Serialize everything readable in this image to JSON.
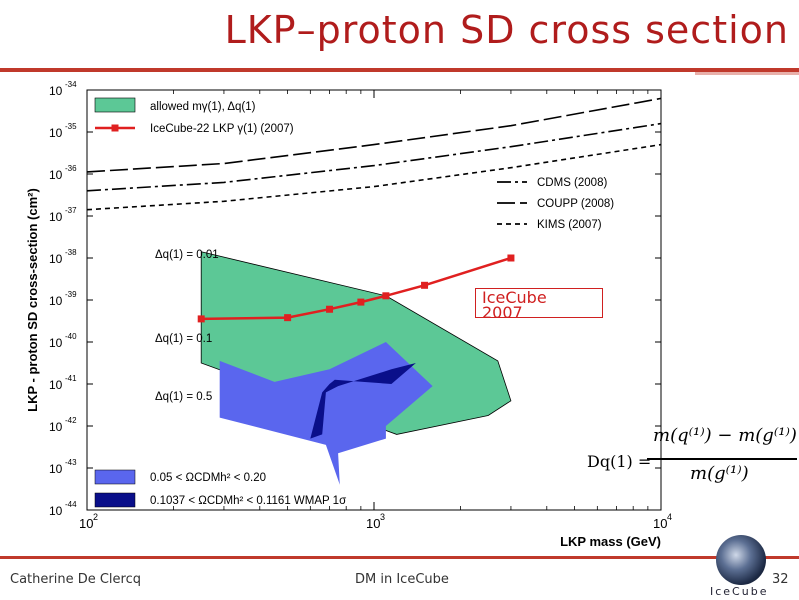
{
  "slide": {
    "title": "LKP–proton SD cross section",
    "footer_author": "Catherine De Clercq",
    "footer_center": "DM in IceCube",
    "page_number": "32",
    "logo_text": "IceCube"
  },
  "annotation": {
    "label_line1": "IceCube",
    "label_line2": "2007"
  },
  "formula": {
    "lhs": "Dq(1) =",
    "numerator": "m(q⁽¹⁾) − m(g⁽¹⁾)",
    "denominator": "m(g⁽¹⁾)"
  },
  "colors": {
    "title": "#b01c1c",
    "allowed": "#5cc896",
    "sigma005": "#5a66ee",
    "wmap": "#0a0f8a",
    "icecube": "#e02020",
    "rule": "#c0392b"
  },
  "chart_data": {
    "type": "line",
    "xlabel": "LKP mass (GeV)",
    "ylabel": "LKP - proton SD cross-section (cm²)",
    "x_scale": "log",
    "y_scale": "log",
    "xlim": [
      100,
      10000
    ],
    "ylim": [
      1e-44,
      1e-34
    ],
    "x_ticks": [
      {
        "value": 100,
        "base": "10",
        "exp": "2"
      },
      {
        "value": 1000,
        "base": "10",
        "exp": "3"
      },
      {
        "value": 10000,
        "base": "10",
        "exp": "4"
      }
    ],
    "y_ticks": [
      {
        "value": -34,
        "base": "10",
        "exp": "-34"
      },
      {
        "value": -35,
        "base": "10",
        "exp": "-35"
      },
      {
        "value": -36,
        "base": "10",
        "exp": "-36"
      },
      {
        "value": -37,
        "base": "10",
        "exp": "-37"
      },
      {
        "value": -38,
        "base": "10",
        "exp": "-38"
      },
      {
        "value": -39,
        "base": "10",
        "exp": "-39"
      },
      {
        "value": -40,
        "base": "10",
        "exp": "-40"
      },
      {
        "value": -41,
        "base": "10",
        "exp": "-41"
      },
      {
        "value": -42,
        "base": "10",
        "exp": "-42"
      },
      {
        "value": -43,
        "base": "10",
        "exp": "-43"
      },
      {
        "value": -44,
        "base": "10",
        "exp": "-44"
      }
    ],
    "legend_top": [
      {
        "name": "allowed mγ(1), Δq(1)",
        "type": "band",
        "color": "#5cc896"
      },
      {
        "name": "IceCube-22 LKP γ(1) (2007)",
        "type": "marker-line",
        "color": "#e02020"
      }
    ],
    "legend_right": [
      {
        "name": "CDMS (2008)",
        "style": "dashdot"
      },
      {
        "name": "COUPP (2008)",
        "style": "longdash"
      },
      {
        "name": "KIMS (2007)",
        "style": "dash"
      }
    ],
    "legend_bottom": [
      {
        "name": "0.05 < ΩCDMh² < 0.20",
        "color": "#5a66ee"
      },
      {
        "name": "0.1037 < ΩCDMh² < 0.1161 WMAP 1σ",
        "color": "#0a0f8a"
      }
    ],
    "delta_labels": [
      "Δq(1) = 0.01",
      "Δq(1) = 0.1",
      "Δq(1) = 0.5"
    ],
    "series": [
      {
        "name": "IceCube-22 LKP γ(1) (2007)",
        "style": "marker-line",
        "x": [
          250,
          500,
          700,
          900,
          1100,
          1500,
          3000
        ],
        "logy": [
          -39.45,
          -39.42,
          -39.22,
          -39.05,
          -38.9,
          -38.65,
          -38.0
        ]
      },
      {
        "name": "COUPP (2008)",
        "style": "longdash",
        "x": [
          100,
          300,
          1000,
          3000,
          10000
        ],
        "logy": [
          -35.95,
          -35.75,
          -35.3,
          -34.85,
          -34.2
        ]
      },
      {
        "name": "CDMS (2008)",
        "style": "dashdot",
        "x": [
          100,
          300,
          1000,
          3000,
          10000
        ],
        "logy": [
          -36.4,
          -36.2,
          -35.8,
          -35.35,
          -34.8
        ]
      },
      {
        "name": "KIMS (2007)",
        "style": "dash",
        "x": [
          100,
          300,
          1000,
          3000,
          10000
        ],
        "logy": [
          -36.85,
          -36.65,
          -36.3,
          -35.85,
          -35.3
        ]
      }
    ],
    "bands": [
      {
        "name": "allowed",
        "x": [
          250,
          250,
          1200,
          2500,
          3000,
          2700,
          1100,
          250
        ],
        "logy": [
          -37.85,
          -40.5,
          -42.2,
          -41.75,
          -41.4,
          -40.45,
          -38.9,
          -37.85
        ]
      },
      {
        "name": "0.05 < ΩCDMh² < 0.20",
        "x": [
          290,
          450,
          700,
          1100,
          1600,
          1100,
          1100,
          750,
          760,
          680,
          290
        ],
        "logy": [
          -40.45,
          -40.95,
          -40.65,
          -40.0,
          -41.05,
          -42.0,
          -42.3,
          -42.65,
          -43.4,
          -42.45,
          -41.8
        ]
      },
      {
        "name": "0.1037 < ΩCDMh² < 0.1161 WMAP 1σ",
        "x": [
          700,
          730,
          1150,
          1400,
          1150,
          750,
          680,
          660,
          600,
          660
        ],
        "logy": [
          -41.0,
          -40.9,
          -41.0,
          -40.5,
          -40.65,
          -41.05,
          -41.2,
          -42.2,
          -42.3,
          -41.2
        ]
      }
    ]
  }
}
